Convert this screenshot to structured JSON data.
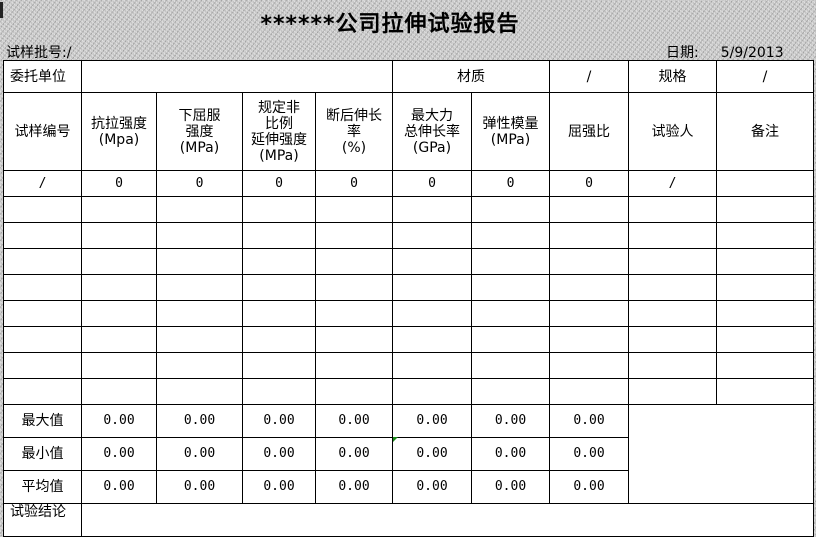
{
  "title": "******公司拉伸试验报告",
  "batch": {
    "label": "试样批号:",
    "value": "/"
  },
  "date": {
    "label": "日期:",
    "value": "5/9/2013"
  },
  "row1": {
    "client_label": "委托单位",
    "client_value": "",
    "material_label": "材质",
    "material_value": "/",
    "spec_label": "规格",
    "spec_value": "/"
  },
  "headers": [
    "试样编号",
    "抗拉强度\n(Mpa)",
    "下屈服\n强度\n(MPa)",
    "规定非\n比例\n延伸强度\n(MPa)",
    "断后伸长\n率\n(%)",
    "最大力\n总伸长率\n(GPa)",
    "弹性模量\n(MPa)",
    "屈强比",
    "试验人",
    "备注"
  ],
  "first_row": [
    "/",
    "0",
    "0",
    "0",
    "0",
    "0",
    "0",
    "0",
    "/",
    ""
  ],
  "empty_rows": 8,
  "stats": [
    {
      "label": "最大值",
      "values": [
        "0.00",
        "0.00",
        "0.00",
        "0.00",
        "0.00",
        "0.00",
        "0.00"
      ]
    },
    {
      "label": "最小值",
      "values": [
        "0.00",
        "0.00",
        "0.00",
        "0.00",
        "0.00",
        "0.00",
        "0.00"
      ]
    },
    {
      "label": "平均值",
      "values": [
        "0.00",
        "0.00",
        "0.00",
        "0.00",
        "0.00",
        "0.00",
        "0.00"
      ]
    }
  ],
  "conclusion_label": "试验结论",
  "conclusion_value": ""
}
